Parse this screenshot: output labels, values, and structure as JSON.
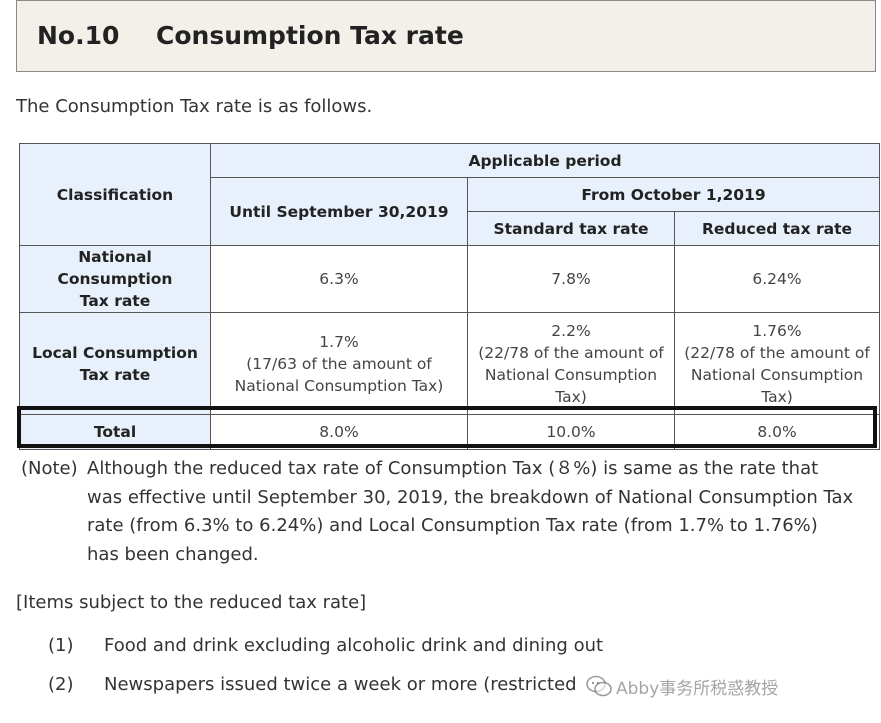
{
  "header": {
    "number": "No.10",
    "title": "Consumption Tax rate"
  },
  "intro": "The Consumption Tax rate is as follows.",
  "table": {
    "classification": "Classification",
    "applicable_period": "Applicable period",
    "until": "Until September 30,2019",
    "from": "From October 1,2019",
    "standard": "Standard tax rate",
    "reduced": "Reduced tax rate",
    "rows": [
      {
        "label_lines": [
          "National Consumption",
          "Tax rate"
        ],
        "until": [
          "6.3%"
        ],
        "standard": [
          "7.8%"
        ],
        "reduced": [
          "6.24%"
        ]
      },
      {
        "label_lines": [
          "Local Consumption",
          "Tax rate"
        ],
        "until": [
          "1.7%",
          "(17/63 of the amount of",
          "National Consumption Tax)"
        ],
        "standard": [
          "2.2%",
          "(22/78 of the amount of",
          "National Consumption",
          "Tax)"
        ],
        "reduced": [
          "1.76%",
          "(22/78 of the amount of",
          "National Consumption",
          "Tax)"
        ]
      }
    ],
    "total": {
      "label": "Total",
      "until": "8.0%",
      "standard": "10.0%",
      "reduced": "8.0%"
    }
  },
  "note": {
    "label": "(Note)",
    "lines": [
      "Although the reduced tax rate of Consumption Tax (８%) is same as the rate that",
      "was effective until September 30, 2019, the breakdown of National Consumption Tax",
      "rate (from 6.3% to 6.24%) and Local Consumption Tax rate (from 1.7% to 1.76%)",
      "has been changed."
    ]
  },
  "items_heading": "[Items subject to the reduced tax rate]",
  "items": [
    {
      "num": "(1)",
      "text": "Food and drink excluding alcoholic drink and dining out"
    },
    {
      "num": "(2)",
      "text": "Newspapers issued twice a week or more (restricted"
    }
  ],
  "watermark": {
    "text": "Abby事务所税惑教授",
    "icon": "chat-bubbles-logo-icon"
  },
  "colors": {
    "header_bg": "#f3efe9",
    "table_header_bg": "#e8f0fb",
    "total_frame": "#111111"
  }
}
